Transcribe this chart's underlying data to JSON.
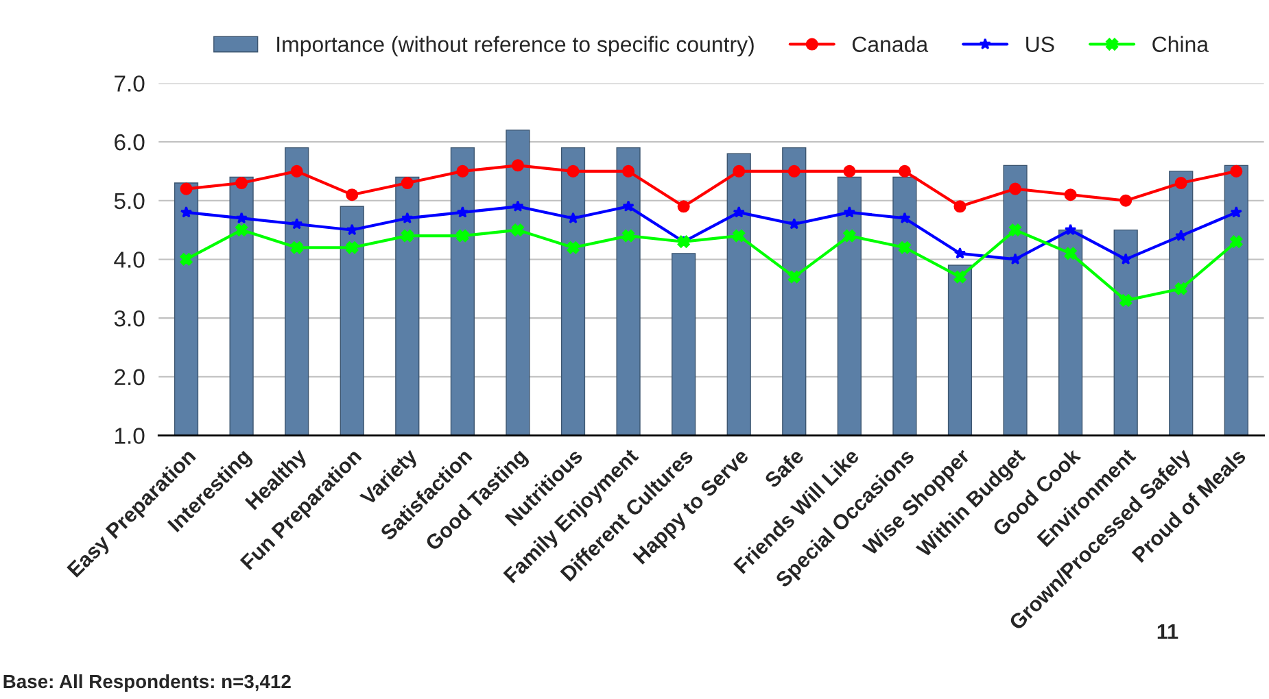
{
  "chart_data": {
    "type": "bar",
    "categories": [
      "Easy Preparation",
      "Interesting",
      "Healthy",
      "Fun Preparation",
      "Variety",
      "Satisfaction",
      "Good Tasting",
      "Nutritious",
      "Family Enjoyment",
      "Different Cultures",
      "Happy to Serve",
      "Safe",
      "Friends Will Like",
      "Special Occasions",
      "Wise Shopper",
      "Within Budget",
      "Good Cook",
      "Environment",
      "Grown/Processed Safely",
      "Proud of Meals"
    ],
    "series": [
      {
        "name": "Importance (without reference to specific country)",
        "color": "#5b7fa6",
        "values": [
          5.3,
          5.4,
          5.9,
          4.9,
          5.4,
          5.9,
          6.2,
          5.9,
          5.9,
          4.1,
          5.8,
          5.9,
          5.4,
          5.4,
          3.9,
          5.6,
          4.5,
          4.5,
          5.5,
          5.6
        ]
      },
      {
        "name": "Canada",
        "type": "line",
        "color": "#ff0000",
        "marker": "circle",
        "values": [
          5.2,
          5.3,
          5.5,
          5.1,
          5.3,
          5.5,
          5.6,
          5.5,
          5.5,
          4.9,
          5.5,
          5.5,
          5.5,
          5.5,
          4.9,
          5.2,
          5.1,
          5.0,
          5.3,
          5.5
        ]
      },
      {
        "name": "US",
        "type": "line",
        "color": "#0000ff",
        "marker": "star",
        "values": [
          4.8,
          4.7,
          4.6,
          4.5,
          4.7,
          4.8,
          4.9,
          4.7,
          4.9,
          4.3,
          4.8,
          4.6,
          4.8,
          4.7,
          4.1,
          4.0,
          4.5,
          4.0,
          4.4,
          4.8
        ]
      },
      {
        "name": "China",
        "type": "line",
        "color": "#00ff00",
        "marker": "cross",
        "values": [
          4.0,
          4.5,
          4.2,
          4.2,
          4.4,
          4.4,
          4.5,
          4.2,
          4.4,
          4.3,
          4.4,
          3.7,
          4.4,
          4.2,
          3.7,
          4.5,
          4.1,
          3.3,
          3.5,
          4.3
        ]
      }
    ],
    "ylim": [
      1,
      7
    ],
    "yticks": [
      {
        "value": 1,
        "label": "1.0"
      },
      {
        "value": 2,
        "label": "2.0"
      },
      {
        "value": 3,
        "label": "3.0"
      },
      {
        "value": 4,
        "label": "4.0"
      },
      {
        "value": 5,
        "label": "5.0"
      },
      {
        "value": 6,
        "label": "6.0"
      },
      {
        "value": 7,
        "label": "7.0"
      }
    ],
    "grid": "y",
    "legend": "top",
    "annotations": [
      "Base: All Respondents: n=3,412",
      "11"
    ]
  }
}
